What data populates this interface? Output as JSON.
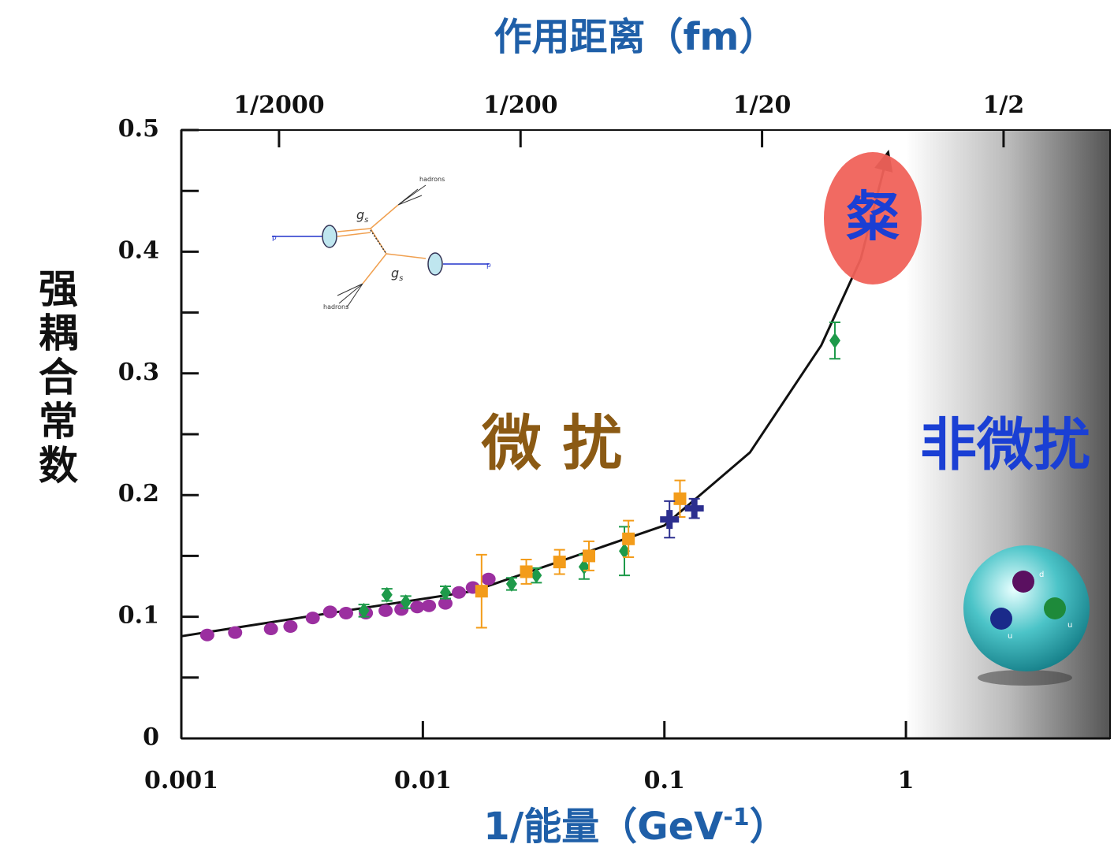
{
  "chart_data": {
    "type": "scatter",
    "title": "作用距离（fm）",
    "xlabel": {
      "text": "1/能量（GeV",
      "sup": "-1",
      "end": "）"
    },
    "ylabel": "强耦合常数",
    "log_x": true,
    "xlim": [
      0.001,
      7
    ],
    "xticks": [
      0.001,
      0.01,
      0.1,
      1
    ],
    "x2lim": [
      0.000197,
      1.38
    ],
    "x2ticks": [
      {
        "value": 0.0005,
        "label": "1/2000"
      },
      {
        "value": 0.005,
        "label": "1/200"
      },
      {
        "value": 0.05,
        "label": "1/20"
      },
      {
        "value": 0.5,
        "label": "1/2"
      }
    ],
    "ylim": [
      0,
      0.5
    ],
    "yticks": [
      0,
      0.1,
      0.2,
      0.3,
      0.4,
      0.5
    ],
    "yminor": [
      0.05,
      0.15,
      0.25,
      0.35,
      0.45
    ],
    "shaded_xrange": [
      1,
      7
    ],
    "annotations": [
      "微 扰",
      "非微扰",
      "粲"
    ],
    "inset_labels": [
      "hadrons",
      "hadrons",
      "p",
      "p",
      "g",
      "s",
      "g",
      "s"
    ],
    "proton_labels": [
      "d",
      "u",
      "u"
    ],
    "series": [
      {
        "marker": "line",
        "color": "#111111",
        "x": [
          0.001,
          0.00355,
          0.0161,
          0.1,
          0.226,
          0.446,
          0.65,
          0.845
        ],
        "values": [
          0.084,
          0.101,
          0.121,
          0.175,
          0.235,
          0.323,
          0.394,
          0.482
        ]
      },
      {
        "marker": "circle",
        "color": "#9b2fa0",
        "x": [
          0.00128,
          0.00167,
          0.00235,
          0.00283,
          0.0035,
          0.00413,
          0.00481,
          0.00581,
          0.00701,
          0.00815,
          0.00948,
          0.0106,
          0.0124,
          0.0141,
          0.0161,
          0.0187
        ],
        "values": [
          0.085,
          0.087,
          0.09,
          0.092,
          0.099,
          0.104,
          0.103,
          0.103,
          0.105,
          0.106,
          0.108,
          0.109,
          0.111,
          0.12,
          0.124,
          0.131
        ]
      },
      {
        "marker": "diamond",
        "color": "#1e9a4a",
        "x": [
          0.0057,
          0.0071,
          0.0085,
          0.0124,
          0.0233,
          0.0295,
          0.0465,
          0.0683,
          0.508
        ],
        "values": [
          0.105,
          0.118,
          0.112,
          0.12,
          0.127,
          0.134,
          0.141,
          0.154,
          0.327
        ],
        "errors": [
          0.005,
          0.005,
          0.005,
          0.005,
          0.005,
          0.006,
          0.01,
          0.02,
          0.015
        ]
      },
      {
        "marker": "square",
        "color": "#f39c1a",
        "x": [
          0.0175,
          0.0268,
          0.0368,
          0.0487,
          0.071,
          0.116
        ],
        "values": [
          0.121,
          0.137,
          0.145,
          0.15,
          0.164,
          0.197
        ],
        "errors": [
          0.03,
          0.01,
          0.01,
          0.012,
          0.015,
          0.015
        ]
      },
      {
        "marker": "cross",
        "color": "#2c2f8f",
        "x": [
          0.105,
          0.133
        ],
        "values": [
          0.18,
          0.189
        ],
        "errors": [
          0.015,
          0.008
        ]
      }
    ]
  }
}
